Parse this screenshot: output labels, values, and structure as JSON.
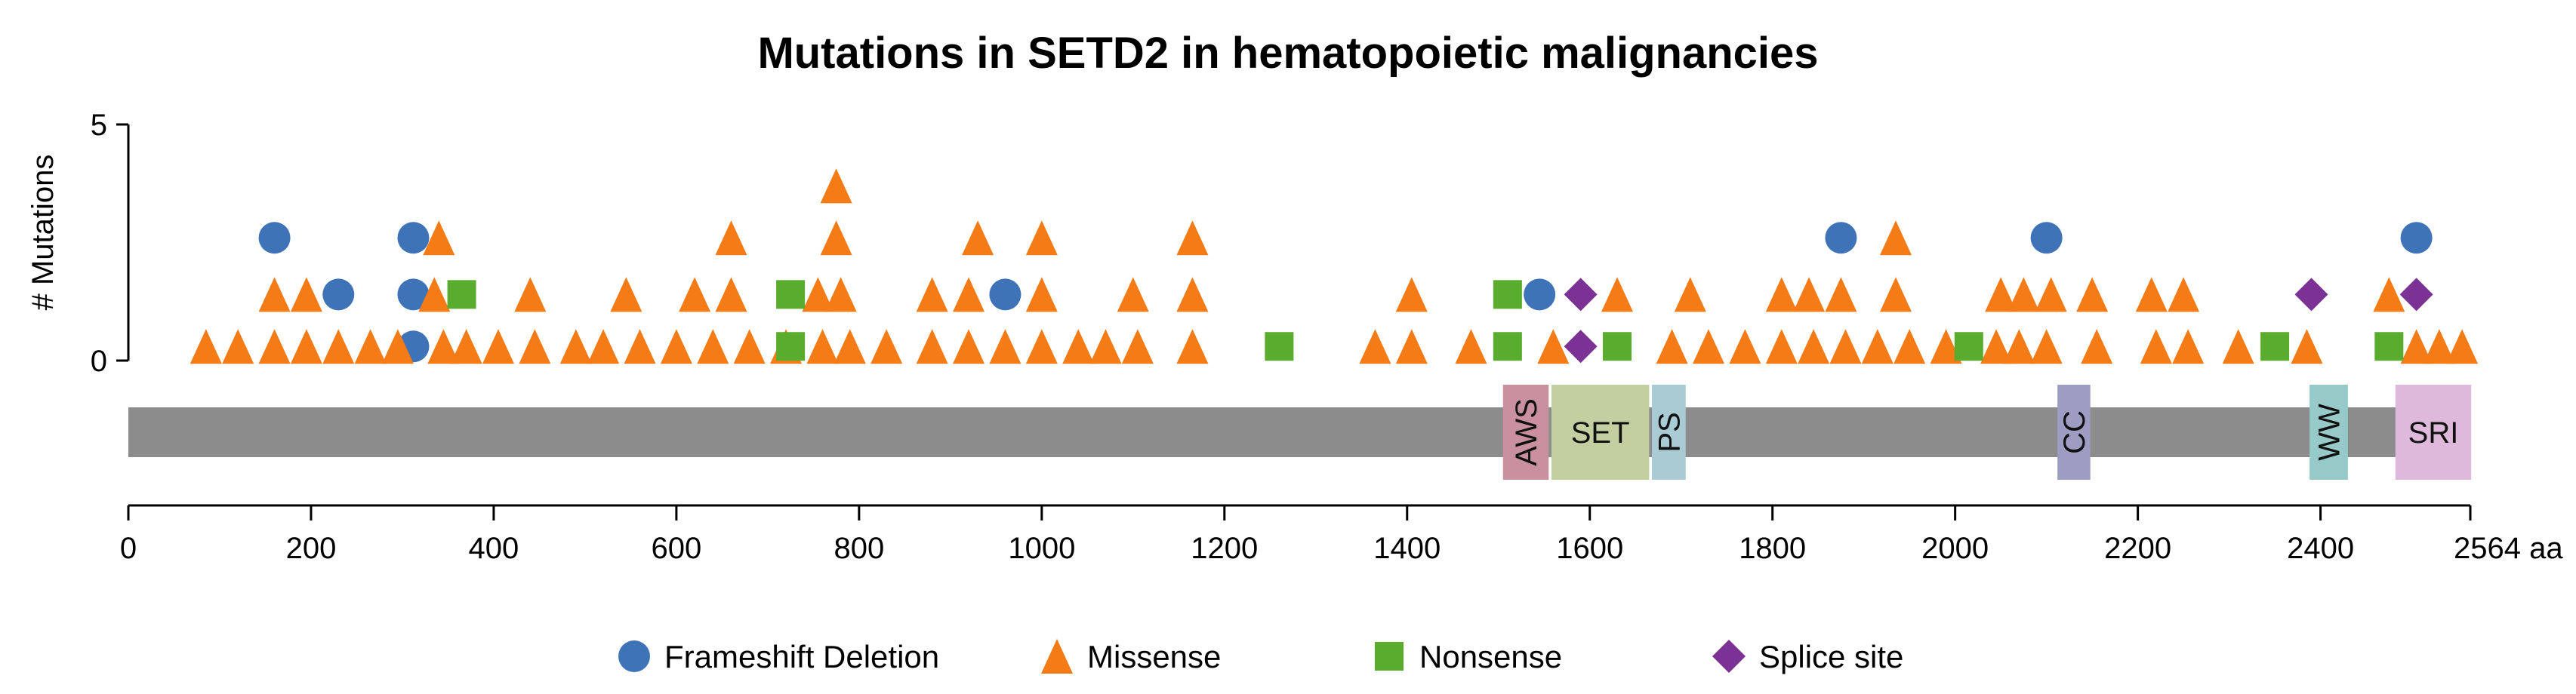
{
  "chart_data": {
    "type": "scatter",
    "title": "Mutations in SETD2 in hematopoietic malignancies",
    "ylabel": "# Mutations",
    "ylim": [
      0,
      5
    ],
    "yticks": [
      0,
      5
    ],
    "xlim": [
      0,
      2564
    ],
    "xticks": [
      "0",
      "200",
      "400",
      "600",
      "800",
      "1000",
      "1200",
      "1400",
      "1600",
      "1800",
      "2000",
      "2200",
      "2400",
      "2564 aa"
    ],
    "xtick_values": [
      0,
      200,
      400,
      600,
      800,
      1000,
      1200,
      1400,
      1600,
      1800,
      2000,
      2200,
      2400,
      2564
    ],
    "protein": {
      "start": 0,
      "end": 2564,
      "color": "#8c8c8c"
    },
    "domains": [
      {
        "name": "AWS",
        "start": 1505,
        "end": 1555,
        "color": "#c9909f",
        "vertical": true
      },
      {
        "name": "SET",
        "start": 1558,
        "end": 1665,
        "color": "#c4cfa1",
        "vertical": false
      },
      {
        "name": "PS",
        "start": 1668,
        "end": 1705,
        "color": "#a8cbd4",
        "vertical": true
      },
      {
        "name": "CC",
        "start": 2112,
        "end": 2148,
        "color": "#9d9cc3",
        "vertical": true
      },
      {
        "name": "WW",
        "start": 2388,
        "end": 2430,
        "color": "#98c9c9",
        "vertical": true
      },
      {
        "name": "SRI",
        "start": 2482,
        "end": 2565,
        "color": "#dfb9db",
        "vertical": false
      }
    ],
    "legend": [
      {
        "key": "frameshift",
        "label": "Frameshift Deletion",
        "color": "#3f73b8",
        "marker": "circle"
      },
      {
        "key": "missense",
        "label": "Missense",
        "color": "#f47b16",
        "marker": "triangle"
      },
      {
        "key": "nonsense",
        "label": "Nonsense",
        "color": "#5aac2e",
        "marker": "square"
      },
      {
        "key": "splice",
        "label": "Splice site",
        "color": "#7b3294",
        "marker": "diamond"
      }
    ],
    "series": [
      {
        "name": "Frameshift Deletion",
        "key": "frameshift",
        "points": [
          [
            160,
            2.6
          ],
          [
            230,
            1.4
          ],
          [
            312,
            2.6
          ],
          [
            312,
            1.4
          ],
          [
            312,
            0.3
          ],
          [
            960,
            1.4
          ],
          [
            1545,
            1.4
          ],
          [
            1875,
            2.6
          ],
          [
            2100,
            2.6
          ],
          [
            2505,
            2.6
          ]
        ]
      },
      {
        "name": "Missense",
        "key": "missense",
        "points": [
          [
            85,
            0.3
          ],
          [
            120,
            0.3
          ],
          [
            160,
            0.3
          ],
          [
            195,
            0.3
          ],
          [
            230,
            0.3
          ],
          [
            265,
            0.3
          ],
          [
            295,
            0.3
          ],
          [
            345,
            0.3
          ],
          [
            370,
            0.3
          ],
          [
            405,
            0.3
          ],
          [
            445,
            0.3
          ],
          [
            490,
            0.3
          ],
          [
            520,
            0.3
          ],
          [
            560,
            0.3
          ],
          [
            600,
            0.3
          ],
          [
            640,
            0.3
          ],
          [
            680,
            0.3
          ],
          [
            720,
            0.3
          ],
          [
            760,
            0.3
          ],
          [
            790,
            0.3
          ],
          [
            830,
            0.3
          ],
          [
            880,
            0.3
          ],
          [
            920,
            0.3
          ],
          [
            960,
            0.3
          ],
          [
            1000,
            0.3
          ],
          [
            1040,
            0.3
          ],
          [
            1070,
            0.3
          ],
          [
            1105,
            0.3
          ],
          [
            1165,
            0.3
          ],
          [
            1365,
            0.3
          ],
          [
            1405,
            0.3
          ],
          [
            1470,
            0.3
          ],
          [
            1560,
            0.3
          ],
          [
            1690,
            0.3
          ],
          [
            1730,
            0.3
          ],
          [
            1770,
            0.3
          ],
          [
            1810,
            0.3
          ],
          [
            1845,
            0.3
          ],
          [
            1880,
            0.3
          ],
          [
            1915,
            0.3
          ],
          [
            1950,
            0.3
          ],
          [
            1990,
            0.3
          ],
          [
            2045,
            0.3
          ],
          [
            2070,
            0.3
          ],
          [
            2100,
            0.3
          ],
          [
            2155,
            0.3
          ],
          [
            2220,
            0.3
          ],
          [
            2255,
            0.3
          ],
          [
            2310,
            0.3
          ],
          [
            2385,
            0.3
          ],
          [
            2505,
            0.3
          ],
          [
            2530,
            0.3
          ],
          [
            2555,
            0.3
          ],
          [
            160,
            1.4
          ],
          [
            195,
            1.4
          ],
          [
            335,
            1.4
          ],
          [
            440,
            1.4
          ],
          [
            545,
            1.4
          ],
          [
            620,
            1.4
          ],
          [
            660,
            1.4
          ],
          [
            755,
            1.4
          ],
          [
            780,
            1.4
          ],
          [
            880,
            1.4
          ],
          [
            920,
            1.4
          ],
          [
            1000,
            1.4
          ],
          [
            1100,
            1.4
          ],
          [
            1165,
            1.4
          ],
          [
            1405,
            1.4
          ],
          [
            1630,
            1.4
          ],
          [
            1710,
            1.4
          ],
          [
            1810,
            1.4
          ],
          [
            1840,
            1.4
          ],
          [
            1875,
            1.4
          ],
          [
            1935,
            1.4
          ],
          [
            2050,
            1.4
          ],
          [
            2075,
            1.4
          ],
          [
            2105,
            1.4
          ],
          [
            2150,
            1.4
          ],
          [
            2215,
            1.4
          ],
          [
            2250,
            1.4
          ],
          [
            2475,
            1.4
          ],
          [
            340,
            2.6
          ],
          [
            660,
            2.6
          ],
          [
            775,
            2.6
          ],
          [
            930,
            2.6
          ],
          [
            1000,
            2.6
          ],
          [
            1165,
            2.6
          ],
          [
            1935,
            2.6
          ],
          [
            775,
            3.7
          ]
        ]
      },
      {
        "name": "Nonsense",
        "key": "nonsense",
        "points": [
          [
            365,
            1.4
          ],
          [
            725,
            1.4
          ],
          [
            725,
            0.3
          ],
          [
            1260,
            0.3
          ],
          [
            1510,
            1.4
          ],
          [
            1510,
            0.3
          ],
          [
            1630,
            0.3
          ],
          [
            2015,
            0.3
          ],
          [
            2350,
            0.3
          ],
          [
            2475,
            0.3
          ]
        ]
      },
      {
        "name": "Splice site",
        "key": "splice",
        "points": [
          [
            1590,
            1.4
          ],
          [
            1590,
            0.3
          ],
          [
            2390,
            1.4
          ],
          [
            2505,
            1.4
          ]
        ]
      }
    ]
  }
}
